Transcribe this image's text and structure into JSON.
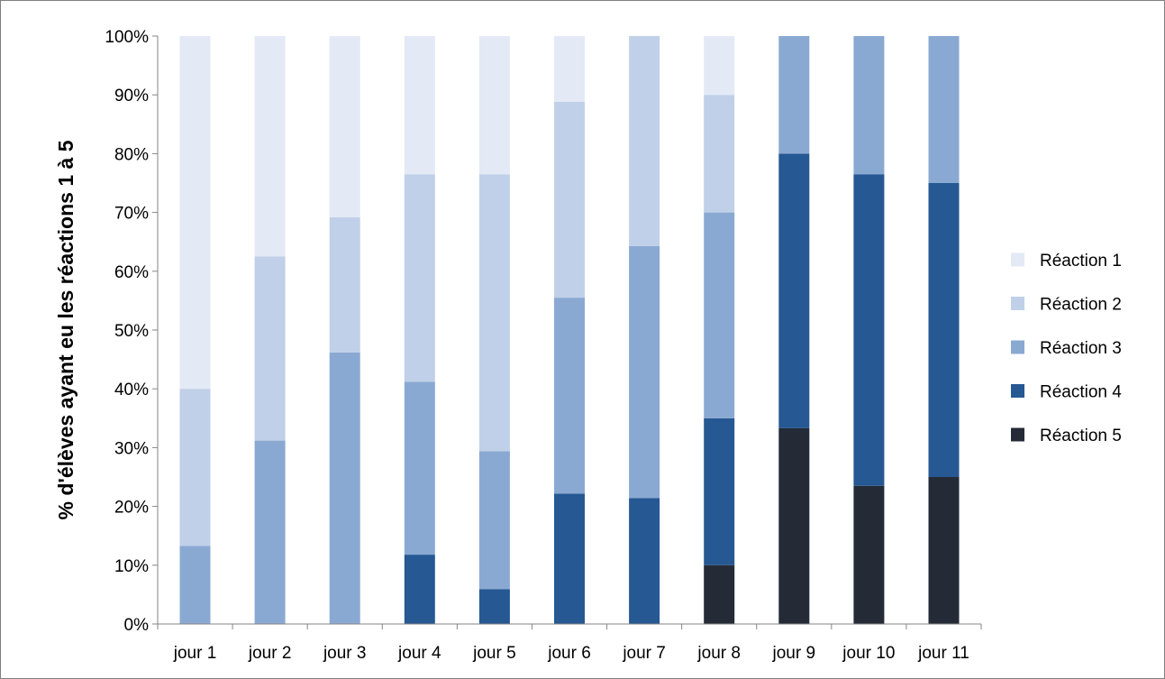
{
  "chart_data": {
    "type": "bar",
    "stacked": true,
    "title": "",
    "xlabel": "",
    "ylabel": "% d'élèves ayant eu les réactions 1 à 5",
    "ylim": [
      0,
      100
    ],
    "y_ticks": [
      "0%",
      "10%",
      "20%",
      "30%",
      "40%",
      "50%",
      "60%",
      "70%",
      "80%",
      "90%",
      "100%"
    ],
    "grid": false,
    "legend_position": "right",
    "categories": [
      "jour 1",
      "jour 2",
      "jour 3",
      "jour 4",
      "jour 5",
      "jour 6",
      "jour 7",
      "jour 8",
      "jour 9",
      "jour 10",
      "jour 11"
    ],
    "series": [
      {
        "name": "Réaction 5",
        "color": "#242b37",
        "values": [
          0,
          0,
          0,
          0,
          0,
          0,
          0,
          10,
          33.3,
          23.5,
          25
        ]
      },
      {
        "name": "Réaction 4",
        "color": "#265893",
        "values": [
          0,
          0,
          0,
          11.8,
          5.9,
          22.2,
          21.4,
          25,
          46.7,
          53,
          50
        ]
      },
      {
        "name": "Réaction 3",
        "color": "#8aa9d2",
        "values": [
          13.3,
          31.2,
          46.2,
          29.4,
          23.5,
          33.3,
          42.9,
          35,
          20,
          23.5,
          25
        ]
      },
      {
        "name": "Réaction 2",
        "color": "#c0d0e8",
        "values": [
          26.7,
          31.3,
          23,
          35.3,
          47.1,
          33.3,
          35.7,
          20,
          0,
          0,
          0
        ]
      },
      {
        "name": "Réaction 1",
        "color": "#e3eaf6",
        "values": [
          60,
          37.5,
          30.8,
          23.5,
          23.5,
          11.2,
          0,
          10,
          0,
          0,
          0
        ]
      }
    ],
    "legend_order": [
      "Réaction 1",
      "Réaction 2",
      "Réaction 3",
      "Réaction 4",
      "Réaction 5"
    ]
  }
}
